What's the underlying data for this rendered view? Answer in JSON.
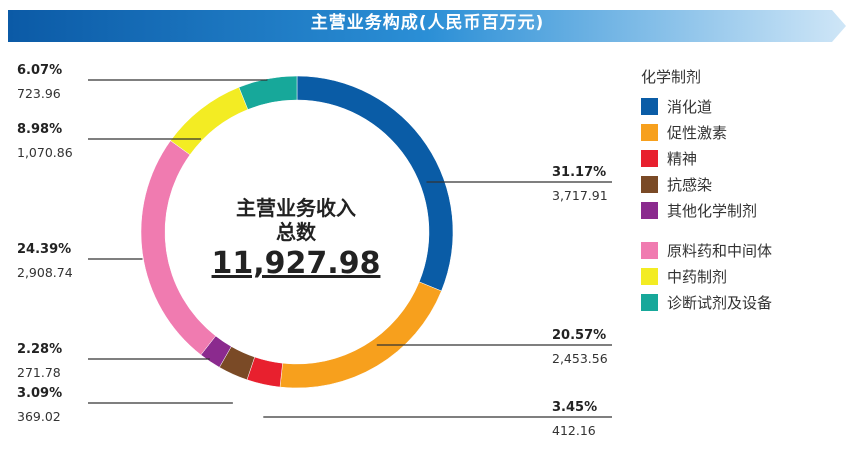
{
  "banner": {
    "title": "主营业务构成(人民币百万元)",
    "color_dark": "#0b5aa6",
    "color_light": "#cfe6f7"
  },
  "center": {
    "line1": "主营业务收入",
    "line2": "总数",
    "total": "11,927.98"
  },
  "legend": {
    "group_title": "化学制剂",
    "items": [
      {
        "label": "消化道",
        "color": "#0a5ca6",
        "group": 1
      },
      {
        "label": "促性激素",
        "color": "#f7a01d",
        "group": 1
      },
      {
        "label": "精神",
        "color": "#e8202e",
        "group": 1
      },
      {
        "label": "抗感染",
        "color": "#7a4a26",
        "group": 1
      },
      {
        "label": "其他化学制剂",
        "color": "#8b2a8e",
        "group": 1
      },
      {
        "label": "原料药和中间体",
        "color": "#f07bb0",
        "group": 2
      },
      {
        "label": "中药制剂",
        "color": "#f3ec23",
        "group": 2
      },
      {
        "label": "诊断试剂及设备",
        "color": "#17a89a",
        "group": 2
      }
    ]
  },
  "chart_data": {
    "type": "pie",
    "variant": "donut",
    "start": "top, clockwise",
    "slices": [
      {
        "name": "消化道",
        "value": 3717.91,
        "value_label": "3,717.91",
        "percent_label": "31.17%",
        "color": "#0a5ca6",
        "label_side": "right"
      },
      {
        "name": "促性激素",
        "value": 2453.56,
        "value_label": "2,453.56",
        "percent_label": "20.57%",
        "color": "#f7a01d",
        "label_side": "right"
      },
      {
        "name": "精神",
        "value": 412.16,
        "value_label": "412.16",
        "percent_label": "3.45%",
        "color": "#e8202e",
        "label_side": "right"
      },
      {
        "name": "抗感染",
        "value": 369.02,
        "value_label": "369.02",
        "percent_label": "3.09%",
        "color": "#7a4a26",
        "label_side": "left"
      },
      {
        "name": "其他化学制剂",
        "value": 271.78,
        "value_label": "271.78",
        "percent_label": "2.28%",
        "color": "#8b2a8e",
        "label_side": "left"
      },
      {
        "name": "原料药和中间体",
        "value": 2908.74,
        "value_label": "2,908.74",
        "percent_label": "24.39%",
        "color": "#f07bb0",
        "label_side": "left"
      },
      {
        "name": "中药制剂",
        "value": 1070.86,
        "value_label": "1,070.86",
        "percent_label": "8.98%",
        "color": "#f3ec23",
        "label_side": "left"
      },
      {
        "name": "诊断试剂及设备",
        "value": 723.96,
        "value_label": "723.96",
        "percent_label": "6.07%",
        "color": "#17a89a",
        "label_side": "left"
      }
    ]
  }
}
